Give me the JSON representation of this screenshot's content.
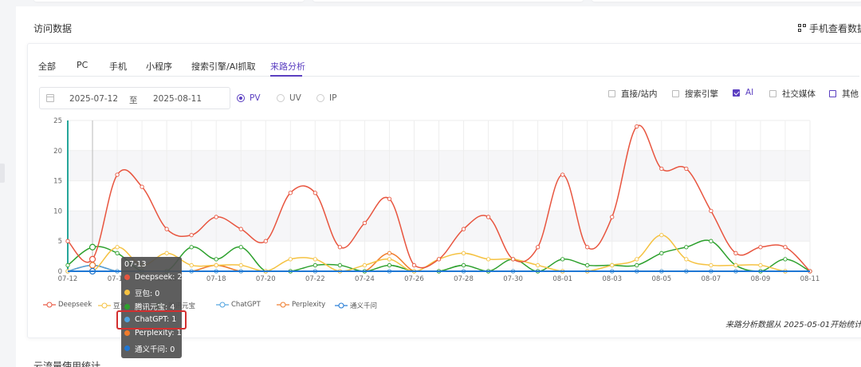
{
  "page": {
    "section_title": "访问数据",
    "mobile_link": "手机查看数据",
    "bottom_title": "云流量使用统计"
  },
  "tabs": [
    {
      "label": "全部"
    },
    {
      "label": "PC"
    },
    {
      "label": "手机"
    },
    {
      "label": "小程序"
    },
    {
      "label": "搜索引擎/AI抓取"
    },
    {
      "label": "来路分析",
      "active": true
    }
  ],
  "filters": {
    "date_start": "2025-07-12",
    "date_sep": "至",
    "date_end": "2025-08-11",
    "metrics": [
      {
        "label": "PV",
        "selected": true
      },
      {
        "label": "UV",
        "selected": false
      },
      {
        "label": "IP",
        "selected": false
      }
    ],
    "sources": [
      {
        "label": "直接/站内",
        "checked": false
      },
      {
        "label": "搜索引擎",
        "checked": false
      },
      {
        "label": "AI",
        "checked": true
      },
      {
        "label": "社交媒体",
        "checked": false
      },
      {
        "label": "其他",
        "checked": false
      }
    ]
  },
  "footnote": "来路分析数据从 2025-05-01开始统计",
  "tooltip": {
    "title": "07-13",
    "rows": [
      {
        "text": "Deepseek: 2",
        "color": "#e8553f"
      },
      {
        "text": "豆包: 0",
        "color": "#f5c242"
      },
      {
        "text": "腾讯元宝: 4",
        "color": "#2ca02c"
      },
      {
        "text": "ChatGPT: 1",
        "color": "#4fa3e0"
      },
      {
        "text": "Perplexity: 1",
        "color": "#f07c2c"
      },
      {
        "text": "通义千问: 0",
        "color": "#1f77d4"
      }
    ]
  },
  "chart_data": {
    "type": "line",
    "x": [
      "07-12",
      "07-13",
      "07-14",
      "07-15",
      "07-16",
      "07-17",
      "07-18",
      "07-19",
      "07-20",
      "07-21",
      "07-22",
      "07-23",
      "07-24",
      "07-25",
      "07-26",
      "07-27",
      "07-28",
      "07-29",
      "07-30",
      "07-31",
      "08-01",
      "08-02",
      "08-03",
      "08-04",
      "08-05",
      "08-06",
      "08-07",
      "08-08",
      "08-09",
      "08-10",
      "08-11"
    ],
    "x_tick_labels": [
      "07-12",
      "07-14",
      "07-16",
      "07-18",
      "07-20",
      "07-22",
      "07-24",
      "07-26",
      "07-28",
      "07-30",
      "08-01",
      "08-03",
      "08-05",
      "08-07",
      "08-09",
      "08-11"
    ],
    "ylim": [
      0,
      25
    ],
    "y_ticks": [
      0,
      5,
      10,
      15,
      20,
      25
    ],
    "legend_position": "bottom-left",
    "series": [
      {
        "name": "Deepseek",
        "color": "#e8553f",
        "values": [
          5,
          2,
          16,
          14,
          7,
          6,
          9,
          7,
          5,
          13,
          13,
          4,
          8,
          12,
          1,
          2,
          7,
          9,
          2,
          4,
          16,
          4,
          9,
          24,
          17,
          17,
          10,
          3,
          4,
          4,
          0
        ]
      },
      {
        "name": "豆包",
        "color": "#f5c242",
        "values": [
          0,
          0,
          4,
          1,
          3,
          1,
          1,
          1,
          0,
          2,
          2,
          0,
          1,
          2,
          0,
          2,
          3,
          2,
          2,
          1,
          0,
          0,
          1,
          2,
          6,
          2,
          1,
          1,
          1,
          0,
          0
        ]
      },
      {
        "name": "腾讯元宝",
        "color": "#2ca02c",
        "values": [
          1,
          4,
          3,
          0,
          0,
          4,
          2,
          4,
          0,
          0,
          1,
          1,
          0,
          1,
          0,
          0,
          1,
          0,
          2,
          0,
          2,
          1,
          1,
          1,
          3,
          4,
          5,
          1,
          0,
          2,
          0
        ]
      },
      {
        "name": "ChatGPT",
        "color": "#4fa3e0",
        "values": [
          0,
          1,
          0,
          0,
          0,
          0,
          0,
          0,
          0,
          0,
          0,
          0,
          0,
          0,
          0,
          0,
          0,
          0,
          0,
          0,
          0,
          0,
          0,
          0,
          0,
          0,
          0,
          0,
          0,
          0,
          0
        ]
      },
      {
        "name": "Perplexity",
        "color": "#f07c2c",
        "values": [
          0,
          1,
          0,
          0,
          0,
          0,
          1,
          0,
          0,
          0,
          0,
          0,
          0,
          3,
          0,
          0,
          0,
          0,
          0,
          0,
          0,
          0,
          0,
          0,
          0,
          0,
          0,
          0,
          0,
          0,
          0
        ]
      },
      {
        "name": "通义千问",
        "color": "#1f77d4",
        "values": [
          0,
          0,
          0,
          0,
          0,
          0,
          0,
          0,
          0,
          0,
          0,
          0,
          0,
          0,
          0,
          0,
          0,
          0,
          0,
          0,
          0,
          0,
          0,
          0,
          0,
          0,
          0,
          0,
          0,
          0,
          0
        ]
      }
    ]
  }
}
